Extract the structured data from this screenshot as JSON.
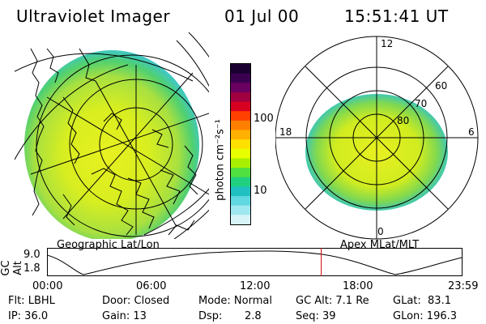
{
  "header": {
    "instrument": "Ultraviolet Imager",
    "date": "01 Jul 00",
    "time": "15:51:41 UT"
  },
  "colorbar": {
    "label": "photon cm⁻²s⁻¹",
    "ticks": [
      "100",
      "10"
    ],
    "colors": [
      "#1a0030",
      "#3a0050",
      "#6a0060",
      "#a00040",
      "#d80020",
      "#ff4000",
      "#ff8000",
      "#ffb000",
      "#ffe000",
      "#e8ff00",
      "#a8f000",
      "#50e040",
      "#20d080",
      "#20c0c0",
      "#60d8e0",
      "#a0e8f0",
      "#d8f4f8"
    ]
  },
  "left_panel": {
    "caption": "Geographic Lat/Lon"
  },
  "right_panel": {
    "caption": "Apex MLat/MLT",
    "mlt_labels": {
      "top": "12",
      "bottom": "0",
      "left": "18",
      "right": "6"
    },
    "lat_labels": [
      "60",
      "70",
      "80"
    ]
  },
  "altitude_plot": {
    "ylabel": "GC Alt",
    "yticks": [
      "9.0",
      "1.8"
    ],
    "xticks": [
      "00:00",
      "06:00",
      "12:00",
      "18:00",
      "23:59"
    ],
    "marker_time": "15:51:41",
    "marker_color": "#d00000"
  },
  "status": {
    "flt": "Flt: LBHL",
    "ip": "IP: 36.0",
    "door": "Door: Closed",
    "gain": "Gain: 13",
    "mode": "Mode: Normal",
    "dsp_label": "Dsp:",
    "dsp_value": "2.8",
    "gc_alt": "GC Alt: 7.1 Re",
    "seq": "Seq: 39",
    "glat": "GLat:  83.1",
    "glon": "GLon: 196.3"
  }
}
